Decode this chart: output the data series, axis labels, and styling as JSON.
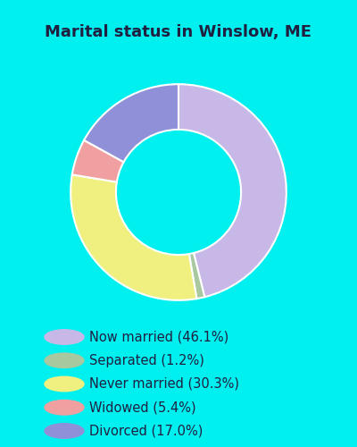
{
  "title": "Marital status in Winslow, ME",
  "slices": [
    {
      "label": "Now married (46.1%)",
      "value": 46.1,
      "color": "#c8b8e8"
    },
    {
      "label": "Separated (1.2%)",
      "value": 1.2,
      "color": "#a8c8a0"
    },
    {
      "label": "Never married (30.3%)",
      "value": 30.3,
      "color": "#f0f080"
    },
    {
      "label": "Widowed (5.4%)",
      "value": 5.4,
      "color": "#f0a0a0"
    },
    {
      "label": "Divorced (17.0%)",
      "value": 17.0,
      "color": "#9090d8"
    }
  ],
  "title_color": "#202040",
  "title_fontsize": 13,
  "bg_color_top": "#00f0f0",
  "bg_color_chart": "#e8f5ee",
  "legend_bg": "#00e8f8",
  "legend_fontsize": 10.5
}
